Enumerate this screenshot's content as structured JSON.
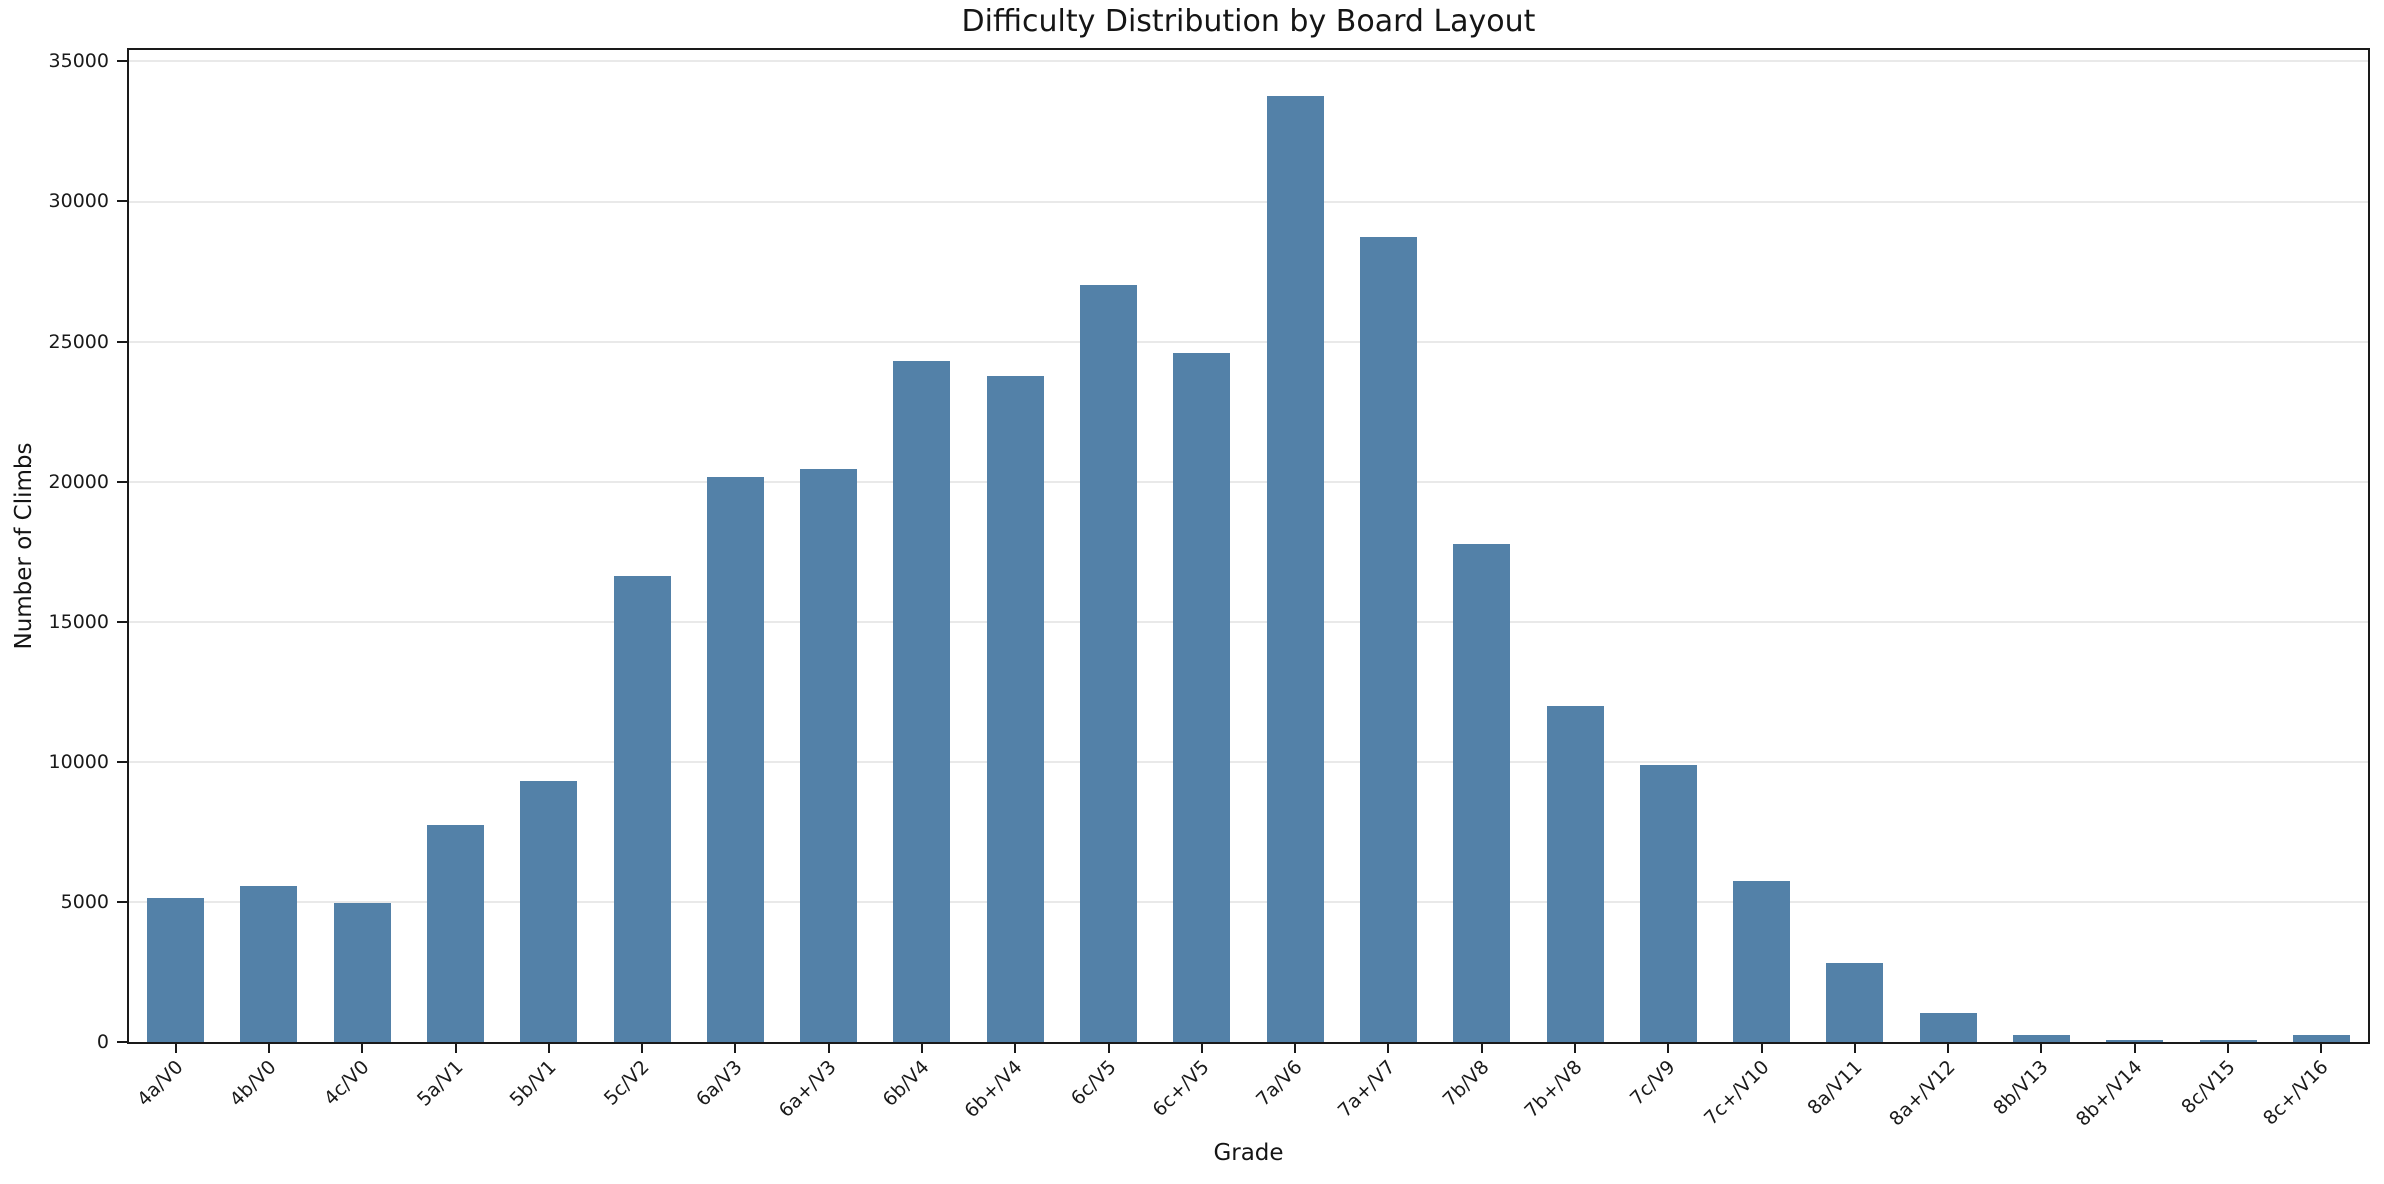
{
  "chart_data": {
    "type": "bar",
    "title": "Difficulty Distribution by Board Layout",
    "xlabel": "Grade",
    "ylabel": "Number of Climbs",
    "categories": [
      "4a/V0",
      "4b/V0",
      "4c/V0",
      "5a/V1",
      "5b/V1",
      "5c/V2",
      "6a/V3",
      "6a+/V3",
      "6b/V4",
      "6b+/V4",
      "6c/V5",
      "6c+/V5",
      "7a/V6",
      "7a+/V7",
      "7b/V8",
      "7b+/V8",
      "7c/V9",
      "7c+/V10",
      "8a/V11",
      "8a+/V12",
      "8b/V13",
      "8b+/V14",
      "8c/V15",
      "8c+/V16"
    ],
    "values": [
      5150,
      5580,
      4970,
      7760,
      9330,
      16640,
      20150,
      20460,
      24300,
      23780,
      27030,
      24580,
      33780,
      28730,
      17790,
      12000,
      9880,
      5730,
      2830,
      1020,
      260,
      70,
      80,
      250
    ],
    "yticks": [
      0,
      5000,
      10000,
      15000,
      20000,
      25000,
      30000,
      35000
    ],
    "ylim": [
      0,
      35540
    ],
    "grid": "horizontal",
    "legend": "none",
    "bar_color": "#5381A8",
    "background_color": "#ffffff",
    "axis_color": "#1a1a1a",
    "gridline_color": "#e9e9e9"
  }
}
